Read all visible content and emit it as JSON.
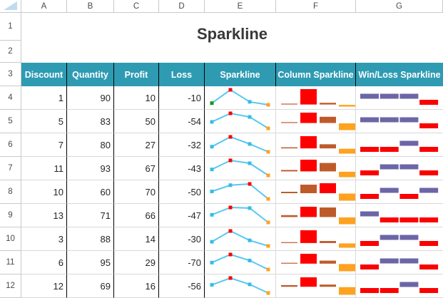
{
  "columns": [
    "A",
    "B",
    "C",
    "D",
    "E",
    "F",
    "G"
  ],
  "row_numbers": [
    "1",
    "2",
    "3",
    "4",
    "5",
    "6",
    "7",
    "8",
    "9",
    "10",
    "11",
    "12"
  ],
  "title": "Sparkline",
  "table": {
    "headers": [
      "Discount",
      "Quantity",
      "Profit",
      "Loss",
      "Sparkline",
      "Column Sparkline",
      "Win/Loss Sparkline"
    ],
    "rows": [
      {
        "discount": 1,
        "quantity": 90,
        "profit": 10,
        "loss": -10,
        "winloss": [
          "W",
          "W",
          "W",
          "L"
        ],
        "line_first_point_green": true
      },
      {
        "discount": 5,
        "quantity": 83,
        "profit": 50,
        "loss": -54,
        "winloss": [
          "W",
          "W",
          "W",
          "L"
        ]
      },
      {
        "discount": 7,
        "quantity": 80,
        "profit": 27,
        "loss": -32,
        "winloss": [
          "L",
          "L",
          "W",
          "L"
        ]
      },
      {
        "discount": 11,
        "quantity": 93,
        "profit": 67,
        "loss": -43,
        "winloss": [
          "L",
          "W",
          "W",
          "L"
        ]
      },
      {
        "discount": 10,
        "quantity": 60,
        "profit": 70,
        "loss": -50,
        "winloss": [
          "L",
          "W",
          "L",
          "W"
        ]
      },
      {
        "discount": 13,
        "quantity": 71,
        "profit": 66,
        "loss": -47,
        "winloss": [
          "W",
          "L",
          "L",
          "L"
        ]
      },
      {
        "discount": 3,
        "quantity": 88,
        "profit": 14,
        "loss": -30,
        "winloss": [
          "L",
          "W",
          "W",
          "L"
        ]
      },
      {
        "discount": 6,
        "quantity": 95,
        "profit": 29,
        "loss": -70,
        "winloss": [
          "L",
          "W",
          "W",
          "L"
        ]
      },
      {
        "discount": 12,
        "quantity": 69,
        "profit": 16,
        "loss": -56,
        "winloss": [
          "L",
          "L",
          "W",
          "L"
        ]
      }
    ]
  },
  "colors": {
    "header_bg": "#2E9BB3",
    "line": "#58C7F0",
    "marker": "#38BBE8",
    "high_point": "#FF0000",
    "low_point": "#FFA21F",
    "first_point": "#169616",
    "column_bar": "#BE5B2B",
    "win": "#6C66A7",
    "loss": "#FB0101",
    "corner_triangle": "#BEDCF0"
  }
}
